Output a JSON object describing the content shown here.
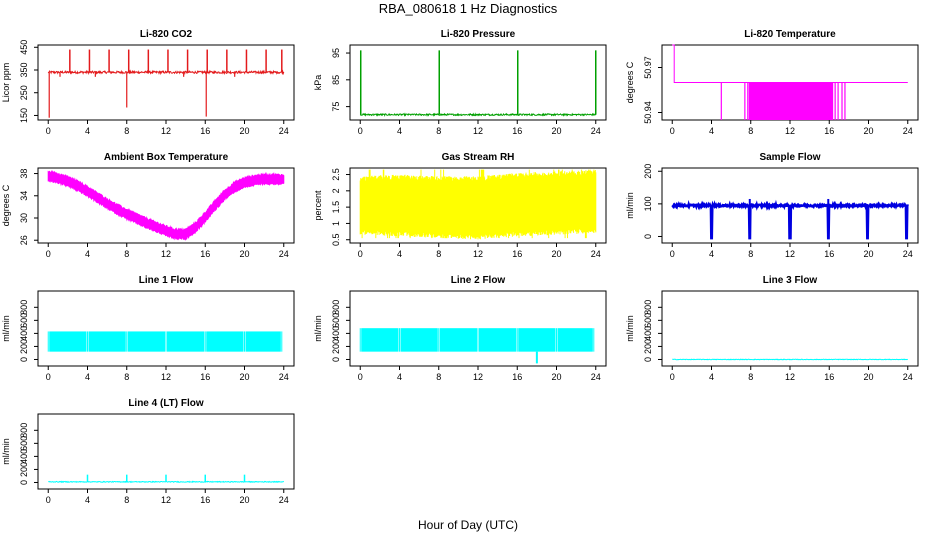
{
  "page_title": "RBA_080618  1 Hz Diagnostics",
  "x_axis_label": "Hour of Day (UTC)",
  "chart_data": [
    {
      "type": "line",
      "title": "Li-820 CO2",
      "ylabel": "Licor ppm",
      "color": "#e31a1c",
      "xlim": [
        0,
        24
      ],
      "xticks": [
        0,
        4,
        8,
        12,
        16,
        20,
        24
      ],
      "ylim": [
        130,
        460
      ],
      "yticks": [
        150,
        250,
        350,
        450
      ],
      "pattern": "co2",
      "baseline": 340,
      "noise": 5,
      "spikes_up": [
        2.2,
        4.2,
        6.2,
        8.2,
        10.2,
        12.2,
        14.2,
        16.2,
        18.2,
        20.2,
        22.2,
        23.8
      ],
      "spike_up_value": 440,
      "spikes_down": [
        [
          0.1,
          140
        ],
        [
          8.0,
          185
        ],
        [
          16.1,
          145
        ],
        [
          1.2,
          320
        ],
        [
          4.8,
          320
        ],
        [
          13.8,
          320
        ],
        [
          19.0,
          320
        ]
      ]
    },
    {
      "type": "line",
      "title": "Li-820 Pressure",
      "ylabel": "kPa",
      "color": "#00a000",
      "xlim": [
        0,
        24
      ],
      "xticks": [
        0,
        4,
        8,
        12,
        16,
        20,
        24
      ],
      "ylim": [
        70,
        98
      ],
      "yticks": [
        75,
        85,
        95
      ],
      "pattern": "pressure",
      "baseline": 72,
      "noise": 0.3,
      "spikes_up": [
        0.05,
        8.05,
        16.05,
        24.0
      ],
      "spike_up_value": 96
    },
    {
      "type": "step",
      "title": "Li-820 Temperature",
      "ylabel": "degrees C",
      "color": "#ff00ff",
      "xlim": [
        0,
        24
      ],
      "xticks": [
        0,
        4,
        8,
        12,
        16,
        20,
        24
      ],
      "ylim": [
        50.935,
        50.985
      ],
      "yticks": [
        50.94,
        50.97
      ],
      "pattern": "temperature",
      "high": 50.985,
      "mid": 50.96,
      "low": 50.935,
      "high_until": 0.2,
      "dips": [
        5.0,
        7.4,
        7.7,
        16.6,
        16.9,
        17.3,
        17.6
      ],
      "band": [
        7.8,
        16.4
      ]
    },
    {
      "type": "line",
      "title": "Ambient Box Temperature",
      "ylabel": "degrees C",
      "color": "#ff00ff",
      "xlim": [
        0,
        24
      ],
      "xticks": [
        0,
        4,
        8,
        12,
        16,
        20,
        24
      ],
      "ylim": [
        25.5,
        39
      ],
      "yticks": [
        26,
        30,
        34,
        38
      ],
      "pattern": "curve",
      "thickness": 1.0,
      "x": [
        0,
        1,
        2,
        3,
        4,
        5,
        6,
        7,
        8,
        9,
        10,
        11,
        12,
        13,
        14,
        15,
        16,
        17,
        18,
        19,
        20,
        21,
        22,
        23,
        24
      ],
      "y": [
        37.5,
        37.2,
        36.6,
        35.8,
        34.8,
        33.7,
        32.6,
        31.6,
        30.7,
        29.9,
        29.1,
        28.4,
        27.7,
        27.1,
        27.1,
        28.3,
        30.2,
        32.3,
        34.2,
        35.6,
        36.4,
        36.8,
        37.0,
        37.0,
        36.9
      ]
    },
    {
      "type": "line",
      "title": "Gas Stream RH",
      "ylabel": "percent",
      "color": "#ffff00",
      "xlim": [
        0,
        24
      ],
      "xticks": [
        0,
        4,
        8,
        12,
        16,
        20,
        24
      ],
      "ylim": [
        0.4,
        2.7
      ],
      "yticks": [
        0.5,
        1.0,
        1.5,
        2.0,
        2.5
      ],
      "pattern": "band",
      "x": [
        0,
        4,
        8,
        12,
        16,
        20,
        24
      ],
      "lower": [
        0.8,
        0.75,
        0.7,
        0.65,
        0.75,
        0.8,
        0.85
      ],
      "upper": [
        2.3,
        2.35,
        2.3,
        2.3,
        2.4,
        2.45,
        2.5
      ],
      "whisker_high": 2.65,
      "whisker_low": 0.55
    },
    {
      "type": "line",
      "title": "Sample Flow",
      "ylabel": "ml/min",
      "color": "#0000e0",
      "xlim": [
        0,
        24
      ],
      "xticks": [
        0,
        4,
        8,
        12,
        16,
        20,
        24
      ],
      "ylim": [
        -20,
        210
      ],
      "yticks": [
        0,
        100,
        200
      ],
      "pattern": "flow",
      "baseline": 95,
      "noise": 3,
      "dips": [
        4.0,
        7.9,
        12.0,
        15.9,
        19.9,
        23.9
      ],
      "dip_value": -5,
      "bumps": [
        7.9,
        15.9
      ],
      "bump_value": 115
    },
    {
      "type": "line",
      "title": "Line 1 Flow",
      "ylabel": "ml/min",
      "color": "#00ffff",
      "xlim": [
        0,
        24
      ],
      "xticks": [
        0,
        4,
        8,
        12,
        16,
        20,
        24
      ],
      "ylim": [
        -100,
        1050
      ],
      "yticks": [
        0,
        200,
        400,
        600,
        800
      ],
      "pattern": "fill",
      "lower": 120,
      "upper": 430,
      "gaps": [
        0.0,
        4.0,
        8.0,
        12.0,
        16.0,
        20.0,
        23.8
      ]
    },
    {
      "type": "line",
      "title": "Line 2 Flow",
      "ylabel": "ml/min",
      "color": "#00ffff",
      "xlim": [
        0,
        24
      ],
      "xticks": [
        0,
        4,
        8,
        12,
        16,
        20,
        24
      ],
      "ylim": [
        -100,
        1050
      ],
      "yticks": [
        0,
        200,
        400,
        600,
        800
      ],
      "pattern": "fill",
      "lower": 120,
      "upper": 480,
      "gaps": [
        0.0,
        4.0,
        8.0,
        12.0,
        16.0,
        20.0,
        23.8
      ],
      "outliers": [
        [
          18.0,
          -60
        ]
      ]
    },
    {
      "type": "line",
      "title": "Line 3 Flow",
      "ylabel": "ml/min",
      "color": "#00ffff",
      "xlim": [
        0,
        24
      ],
      "xticks": [
        0,
        4,
        8,
        12,
        16,
        20,
        24
      ],
      "ylim": [
        -100,
        1050
      ],
      "yticks": [
        0,
        200,
        400,
        600,
        800
      ],
      "pattern": "flat",
      "baseline": 0,
      "noise": 4
    },
    {
      "type": "line",
      "title": "Line 4 (LT) Flow",
      "ylabel": "ml/min",
      "color": "#00ffff",
      "xlim": [
        0,
        24
      ],
      "xticks": [
        0,
        4,
        8,
        12,
        16,
        20,
        24
      ],
      "ylim": [
        -100,
        1050
      ],
      "yticks": [
        0,
        200,
        400,
        600,
        800
      ],
      "pattern": "flat",
      "baseline": 10,
      "noise": 6,
      "spikes_up": [
        4.0,
        8.0,
        12.0,
        16.0,
        20.0
      ],
      "spike_up_value": 120
    }
  ]
}
